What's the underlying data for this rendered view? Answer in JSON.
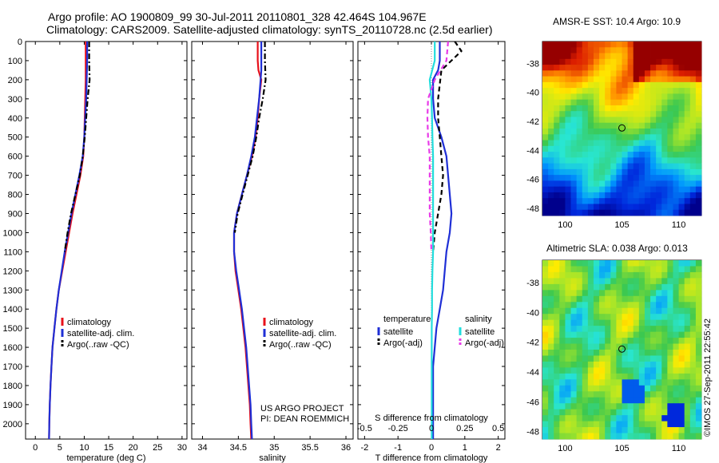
{
  "header": {
    "line1": "Argo profile: AO 1900809_99 30-Jul-2011 20110801_328 42.464S 104.967E",
    "line2": "Climatology: CARS2009. Satellite-adjusted climatology: synTS_20110728.nc (2.5d earlier)"
  },
  "side_stamp": "©IMOS 27-Sep-2011 22:55:42",
  "project_note": [
    "US ARGO PROJECT",
    "PI: DEAN ROEMMICH"
  ],
  "colors": {
    "red": "#e8101a",
    "blue": "#1f2fd6",
    "black": "#000000",
    "cyan": "#22dddd",
    "magenta": "#e83be8"
  },
  "chart_data": [
    {
      "type": "line",
      "xlabel": "temperature (deg C)",
      "ylabel": "",
      "xlim": [
        -2,
        31
      ],
      "ylim": [
        2080,
        0
      ],
      "xticks": [
        "0",
        "5",
        "10",
        "15",
        "20",
        "25",
        "30"
      ],
      "yticks": [
        "0",
        "100",
        "200",
        "300",
        "400",
        "500",
        "600",
        "700",
        "800",
        "900",
        "1000",
        "1100",
        "1200",
        "1300",
        "1400",
        "1500",
        "1600",
        "1700",
        "1800",
        "1900",
        "2000"
      ],
      "legend": {
        "placement": "lower-right",
        "entries": [
          "climatology",
          "satellite-adj. clim.",
          "Argo(..raw -QC)"
        ]
      },
      "series": [
        {
          "name": "climatology",
          "color_key": "red",
          "style": "solid",
          "x": [
            10.3,
            10.3,
            10.3,
            10.2,
            10.1,
            10.0,
            9.8,
            9.2,
            8.4,
            7.6,
            6.9,
            6.2,
            5.5,
            4.8,
            4.3,
            3.9,
            3.5,
            3.3,
            3.1,
            2.95,
            2.85,
            2.8
          ],
          "y": [
            0,
            100,
            200,
            300,
            400,
            500,
            600,
            700,
            800,
            900,
            1000,
            1100,
            1200,
            1300,
            1400,
            1500,
            1600,
            1700,
            1800,
            1900,
            2000,
            2080
          ]
        },
        {
          "name": "satellite-adj. clim.",
          "color_key": "blue",
          "style": "solid",
          "x": [
            10.6,
            10.6,
            10.5,
            10.4,
            10.2,
            10.0,
            9.7,
            9.0,
            8.2,
            7.4,
            6.7,
            6.0,
            5.4,
            4.8,
            4.3,
            3.9,
            3.5,
            3.3,
            3.1,
            2.95,
            2.85,
            2.8
          ],
          "y": [
            0,
            100,
            200,
            300,
            400,
            500,
            600,
            700,
            800,
            900,
            1000,
            1100,
            1200,
            1300,
            1400,
            1500,
            1600,
            1700,
            1800,
            1900,
            2000,
            2080
          ]
        },
        {
          "name": "Argo(..raw -QC)",
          "color_key": "black",
          "style": "dashdot",
          "x": [
            11.0,
            11.0,
            11.1,
            10.7,
            10.4,
            10.1,
            9.7,
            9.1,
            8.2,
            7.3,
            6.6,
            6.0
          ],
          "y": [
            0,
            100,
            200,
            300,
            400,
            500,
            600,
            700,
            800,
            900,
            1000,
            1100
          ]
        }
      ]
    },
    {
      "type": "line",
      "xlabel": "salinity",
      "ylabel": "",
      "xlim": [
        33.85,
        36.1
      ],
      "ylim": [
        2080,
        0
      ],
      "xticks": [
        "34",
        "34.5",
        "35",
        "35.5",
        "36"
      ],
      "legend": {
        "placement": "lower-right",
        "entries": [
          "climatology",
          "satellite-adj. clim.",
          "Argo(..raw -QC)"
        ]
      },
      "series": [
        {
          "name": "climatology",
          "color_key": "red",
          "style": "solid",
          "x": [
            34.77,
            34.77,
            34.78,
            34.82,
            34.79,
            34.77,
            34.74,
            34.69,
            34.62,
            34.55,
            34.48,
            34.44,
            34.44,
            34.46,
            34.5,
            34.54,
            34.57,
            34.6,
            34.62,
            34.64,
            34.66,
            34.67,
            34.68
          ],
          "y": [
            0,
            100,
            150,
            200,
            300,
            400,
            500,
            600,
            700,
            800,
            900,
            1000,
            1100,
            1200,
            1300,
            1400,
            1500,
            1600,
            1700,
            1800,
            1900,
            2000,
            2080
          ]
        },
        {
          "name": "satellite-adj. clim.",
          "color_key": "blue",
          "style": "solid",
          "x": [
            34.82,
            34.82,
            34.82,
            34.81,
            34.79,
            34.76,
            34.73,
            34.68,
            34.62,
            34.55,
            34.48,
            34.44,
            34.44,
            34.47,
            34.51,
            34.55,
            34.58,
            34.61,
            34.63,
            34.65,
            34.67,
            34.68,
            34.69
          ],
          "y": [
            0,
            100,
            150,
            200,
            300,
            400,
            500,
            600,
            700,
            800,
            900,
            1000,
            1100,
            1200,
            1300,
            1400,
            1500,
            1600,
            1700,
            1800,
            1900,
            2000,
            2080
          ]
        },
        {
          "name": "Argo(..raw -QC)",
          "color_key": "black",
          "style": "dashdot",
          "x": [
            34.87,
            34.87,
            34.88,
            34.84,
            34.79,
            34.75,
            34.7,
            34.63,
            34.56,
            34.49,
            34.45
          ],
          "y": [
            0,
            100,
            200,
            300,
            400,
            500,
            600,
            700,
            800,
            900,
            1000
          ]
        }
      ]
    },
    {
      "type": "line",
      "xlabel": "T difference from climatology",
      "xlabel_top": "S difference from climatology",
      "xlim": [
        -2.2,
        2.2
      ],
      "ylim": [
        2080,
        0
      ],
      "xticks": [
        "-2",
        "-1",
        "0",
        "1",
        "2"
      ],
      "xticks_top": [
        "-0.5",
        "-0.25",
        "0",
        "0.25",
        "0.5"
      ],
      "legend": {
        "placement": "lower-center",
        "temperature_heading": "temperature",
        "salinity_heading": "salinity",
        "temperature_entries": [
          "satellite",
          "Argo(-adj)"
        ],
        "salinity_entries": [
          "satellite",
          "Argo(-adj)"
        ]
      },
      "series": [
        {
          "name": "temperature satellite",
          "color_key": "blue",
          "style": "solid",
          "x": [
            0.25,
            0.25,
            0.2,
            0.05,
            0.05,
            0.1,
            0.3,
            0.45,
            0.5,
            0.55,
            0.6,
            0.55,
            0.45,
            0.4,
            0.35,
            0.25,
            0.15,
            0.1,
            0.05,
            0.05,
            0.05,
            0.05
          ],
          "y": [
            0,
            100,
            150,
            200,
            300,
            400,
            500,
            600,
            700,
            800,
            900,
            1000,
            1100,
            1200,
            1300,
            1400,
            1500,
            1600,
            1700,
            1800,
            1900,
            2080
          ]
        },
        {
          "name": "temperature Argo(-adj)",
          "color_key": "black",
          "style": "dashed",
          "x": [
            0.7,
            0.9,
            0.3,
            0.2,
            0.2,
            0.25,
            0.3,
            0.35,
            0.3,
            0.2,
            0.1,
            0.05
          ],
          "y": [
            0,
            50,
            150,
            300,
            400,
            500,
            600,
            700,
            800,
            900,
            1000,
            1100
          ]
        },
        {
          "name": "salinity satellite",
          "color_key": "cyan",
          "style": "solid",
          "x": [
            0.1,
            0.1,
            -0.05,
            0.0,
            0.02,
            0.03,
            0.05,
            0.05,
            0.05,
            0.05,
            0.05,
            0.05,
            0.03,
            0.02,
            0.02,
            0.01,
            0.01,
            0.01,
            0.01,
            0.01,
            0.01
          ],
          "y": [
            0,
            100,
            200,
            300,
            400,
            500,
            600,
            700,
            800,
            900,
            1000,
            1100,
            1200,
            1300,
            1400,
            1500,
            1600,
            1700,
            1800,
            1900,
            2080
          ]
        },
        {
          "name": "salinity Argo(-adj)",
          "color_key": "magenta",
          "style": "dashed",
          "x": [
            0.5,
            0.45,
            0.1,
            -0.1,
            -0.12,
            -0.1,
            -0.05,
            -0.05,
            -0.05,
            -0.05,
            -0.02,
            0.0
          ],
          "y": [
            0,
            100,
            200,
            300,
            400,
            500,
            600,
            700,
            800,
            900,
            1000,
            1100
          ]
        }
      ]
    },
    {
      "type": "heatmap",
      "title": "AMSR-E SST: 10.4 Argo: 10.9",
      "xlim": [
        98,
        112
      ],
      "ylim": [
        -48.5,
        -36.5
      ],
      "xticks": [
        "100",
        "105",
        "110"
      ],
      "yticks": [
        "-38",
        "-40",
        "-42",
        "-44",
        "-46",
        "-48"
      ],
      "marker": {
        "lon": 105.0,
        "lat": -42.46
      }
    },
    {
      "type": "heatmap",
      "title": "Altimetric SLA: 0.038 Argo: 0.013",
      "xlim": [
        98,
        112
      ],
      "ylim": [
        -48.5,
        -36.5
      ],
      "xticks": [
        "100",
        "105",
        "110"
      ],
      "yticks": [
        "-38",
        "-40",
        "-42",
        "-44",
        "-46",
        "-48"
      ],
      "marker": {
        "lon": 105.0,
        "lat": -42.46
      }
    }
  ]
}
